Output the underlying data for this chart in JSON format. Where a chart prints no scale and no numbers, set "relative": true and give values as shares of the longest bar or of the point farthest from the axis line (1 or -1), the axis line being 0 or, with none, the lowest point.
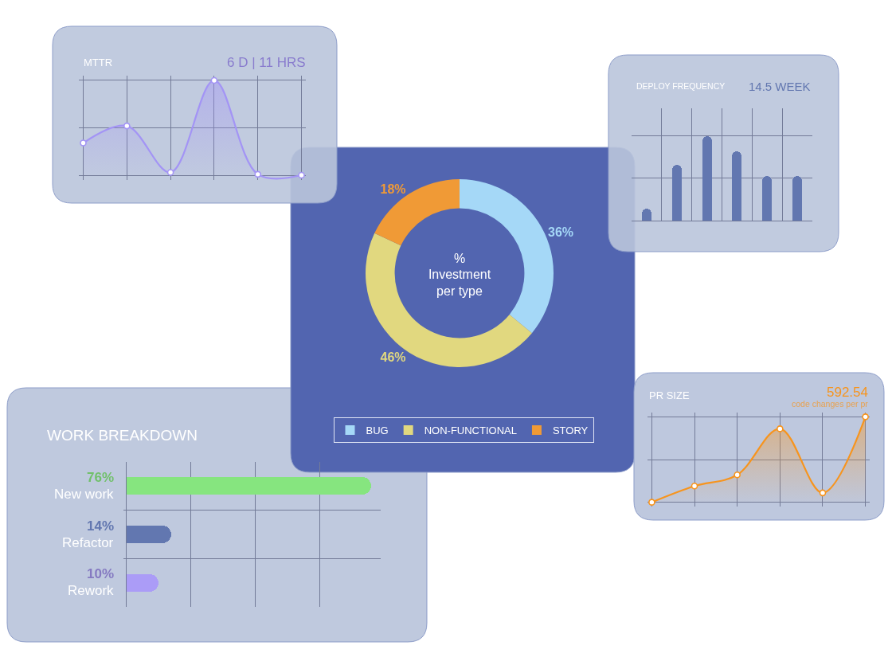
{
  "chart_data": [
    {
      "type": "area",
      "title": "MTTR",
      "subtitle": "6 D | 11 HRS",
      "categories": [
        null,
        null,
        null,
        null,
        null,
        null
      ],
      "relative": true,
      "series": [
        {
          "color": "#a394f5",
          "values": [
            0.34,
            0.52,
            0.03,
            1,
            0.01,
            0
          ]
        }
      ],
      "marker": "circle",
      "grid": true
    },
    {
      "type": "bar",
      "title": "DEPLOY FREQUENCY",
      "subtitle": "14.5 WEEK",
      "categories": [
        null,
        null,
        null,
        null,
        null,
        null
      ],
      "relative": true,
      "values": [
        0.14,
        0.66,
        1,
        0.82,
        0.53,
        0.53
      ],
      "color": "#6277b0",
      "grid": true
    },
    {
      "type": "donut",
      "title": "%\nInvestment\nper type",
      "categories": [
        "BUG",
        "NON-FUNCTIONAL",
        "STORY"
      ],
      "values": [
        36,
        46,
        18
      ],
      "colors": [
        "#a5d8f7",
        "#e1d87f",
        "#f09a36"
      ],
      "value_labels": [
        "36%",
        "46%",
        "18%"
      ],
      "legend": "bottom"
    },
    {
      "type": "area",
      "title": "PR SIZE",
      "subtitle": "592.54",
      "annotations": [
        "code changes per pr"
      ],
      "categories": [
        null,
        null,
        null,
        null,
        null,
        null
      ],
      "relative": true,
      "series": [
        {
          "color": "#f7941d",
          "values": [
            0,
            0.19,
            0.32,
            0.86,
            0.11,
            1
          ]
        }
      ],
      "marker": "circle",
      "grid": true
    },
    {
      "type": "bar",
      "orientation": "horizontal",
      "title": "WORK BREAKDOWN",
      "categories": [
        "New work",
        "Refactor",
        "Rework"
      ],
      "values": [
        76,
        14,
        10
      ],
      "colors": [
        "#86e57f",
        "#6277b0",
        "#ab9cf7"
      ],
      "value_labels": [
        "76%",
        "14%",
        "10%"
      ],
      "grid": true,
      "tick_labels": "y"
    }
  ]
}
